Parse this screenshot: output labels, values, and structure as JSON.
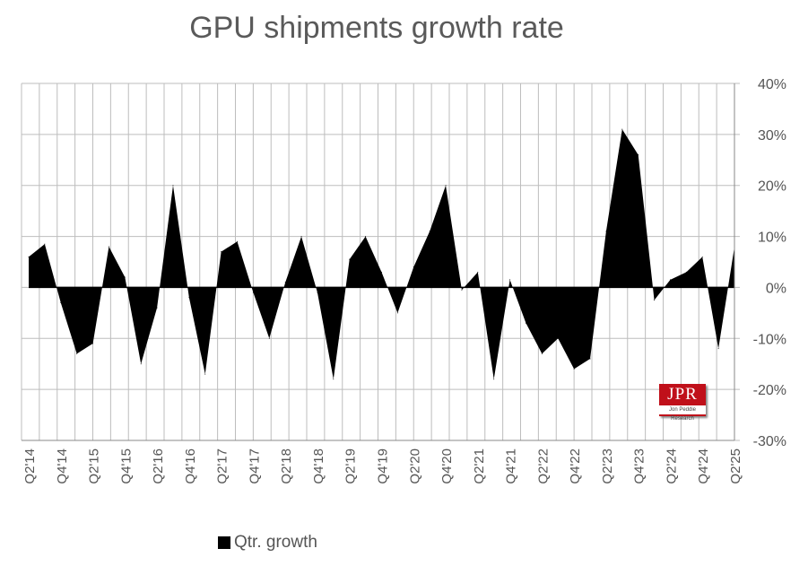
{
  "chart_data": {
    "type": "area",
    "title": "GPU shipments growth rate",
    "xlabel": "",
    "ylabel": "",
    "ylim": [
      -30,
      40
    ],
    "y_ticks": [
      40,
      30,
      20,
      10,
      0,
      -10,
      -20,
      -30
    ],
    "y_tick_labels": [
      "40%",
      "30%",
      "20%",
      "10%",
      "0%",
      "-10%",
      "-20%",
      "-30%"
    ],
    "x_tick_labels": [
      "Q2'14",
      "Q4'14",
      "Q2'15",
      "Q4'15",
      "Q2'16",
      "Q4'16",
      "Q2'17",
      "Q4'17",
      "Q2'18",
      "Q4'18",
      "Q2'19",
      "Q4'19",
      "Q2'20",
      "Q4'20",
      "Q2'21",
      "Q4'21",
      "Q2'22",
      "Q4'22",
      "Q2'23",
      "Q4'23",
      "Q2'24",
      "Q4'24",
      "Q2'25"
    ],
    "x_tick_indices": [
      0,
      2,
      4,
      6,
      8,
      10,
      12,
      14,
      16,
      18,
      20,
      22,
      24,
      26,
      28,
      30,
      32,
      34,
      36,
      38,
      40,
      42,
      44
    ],
    "grid": true,
    "y_axis_side": "right",
    "series": [
      {
        "name": "Qtr. growth",
        "color": "#000000",
        "values": [
          6,
          8.5,
          -3,
          -13,
          -11,
          8,
          2,
          -15,
          -4,
          20,
          -2,
          -17,
          7,
          9,
          -1,
          -10,
          1,
          10,
          -1,
          -18,
          5.5,
          10,
          3,
          -5,
          4,
          11,
          20,
          -0.5,
          3,
          -18,
          1.5,
          -7,
          -13,
          -10,
          -16,
          -14,
          11,
          31,
          26,
          -2.5,
          1.5,
          3,
          6,
          -12,
          8
        ]
      }
    ],
    "legend": {
      "position": "bottom-left",
      "label": "Qtr. growth"
    }
  },
  "logo": {
    "text": "JPR",
    "subtext": "Jon Peddie Research"
  }
}
